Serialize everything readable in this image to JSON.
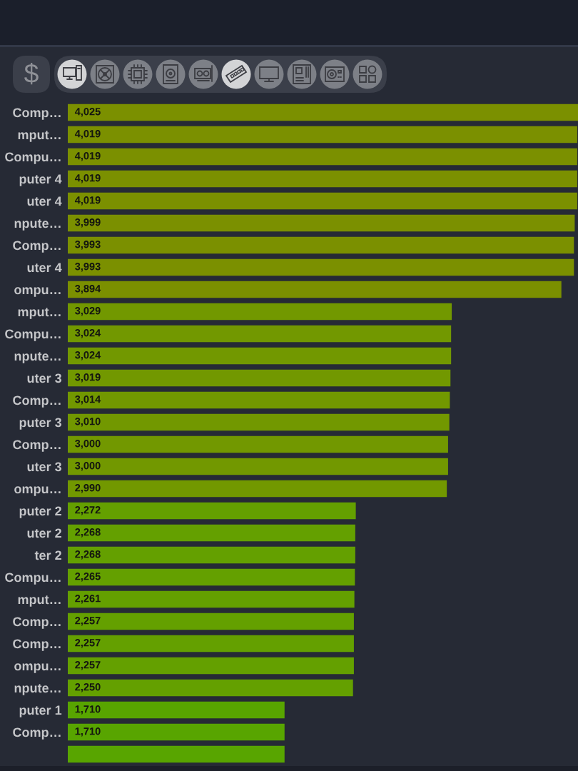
{
  "chart_data": {
    "type": "bar",
    "orientation": "horizontal",
    "categories": [
      "Comp…",
      "mput…",
      "Compu…",
      "puter 4",
      "uter 4",
      "npute…",
      "Comp…",
      "uter 4",
      "ompu…",
      "mput…",
      "Compu…",
      "npute…",
      "uter 3",
      "Comp…",
      "puter 3",
      "Comp…",
      "uter 3",
      "ompu…",
      "puter 2",
      "uter 2",
      "ter 2",
      "Compu…",
      "mput…",
      "Comp…",
      "Comp…",
      "ompu…",
      "npute…",
      "puter 1",
      "Comp…",
      null
    ],
    "values": [
      4025,
      4019,
      4019,
      4019,
      4019,
      3999,
      3993,
      3993,
      3894,
      3029,
      3024,
      3024,
      3019,
      3014,
      3010,
      3000,
      3000,
      2990,
      2272,
      2268,
      2268,
      2265,
      2261,
      2257,
      2257,
      2257,
      2250,
      1710,
      1710,
      1710
    ],
    "value_labels": [
      "4,025",
      "4,019",
      "4,019",
      "4,019",
      "4,019",
      "3,999",
      "3,993",
      "3,993",
      "3,894",
      "3,029",
      "3,024",
      "3,024",
      "3,019",
      "3,014",
      "3,010",
      "3,000",
      "3,000",
      "2,990",
      "2,272",
      "2,268",
      "2,268",
      "2,265",
      "2,261",
      "2,257",
      "2,257",
      "2,257",
      "2,250",
      "1,710",
      "1,710",
      null
    ],
    "colors": [
      "#7b9000",
      "#7b9000",
      "#7b9000",
      "#7b9000",
      "#7b9000",
      "#7b9000",
      "#7b9000",
      "#7b9000",
      "#7b9000",
      "#729800",
      "#729800",
      "#729800",
      "#729800",
      "#729800",
      "#729800",
      "#729800",
      "#729800",
      "#729800",
      "#64a000",
      "#64a000",
      "#64a000",
      "#64a000",
      "#64a000",
      "#64a000",
      "#64a000",
      "#64a000",
      "#64a000",
      "#58a500",
      "#58a500",
      "#58a500"
    ],
    "xlim": [
      0,
      4025
    ],
    "tick_labels": "y",
    "annotations": [
      "$"
    ]
  }
}
